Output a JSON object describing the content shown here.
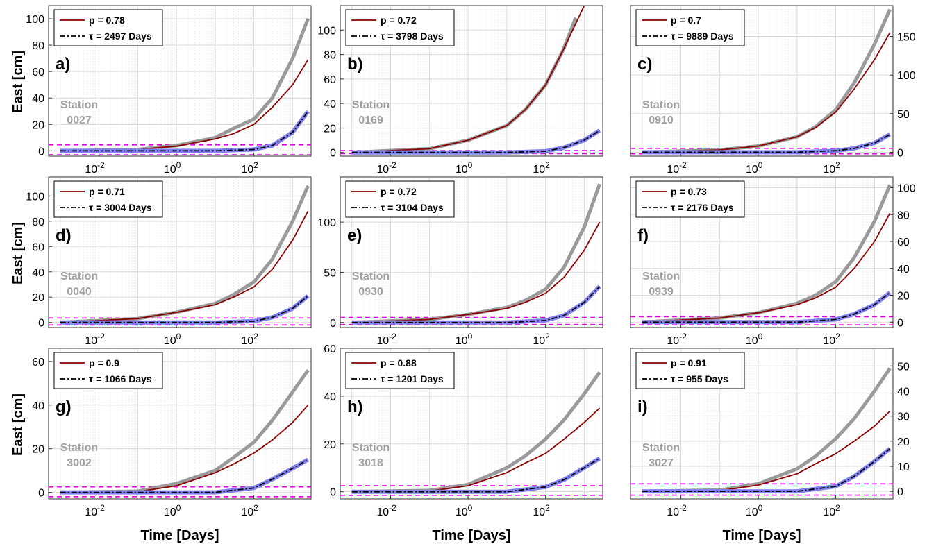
{
  "figure": {
    "ylabel": "East [cm]",
    "xlabel": "Time [Days]",
    "legend_p_prefix": "p = ",
    "legend_tau_prefix": "τ = ",
    "legend_tau_suffix": " Days",
    "station_word": "Station",
    "x_tick_labels": [
      "10^-2",
      "10^0",
      "10^2"
    ],
    "x_scale": "log",
    "x_range": [
      0.0005,
      3000
    ],
    "grid": true,
    "legend_position": "top-left",
    "colors": {
      "data": "#9a9a9a",
      "residual": "#8080ee",
      "model": "#8b0000",
      "postseismic_fit": "#000000",
      "threshold": "#e000e0",
      "station_label": "#a0a0a0"
    }
  },
  "chart_data": [
    {
      "type": "line",
      "panel": "a)",
      "station": "0027",
      "p": "0.78",
      "tau": "2497",
      "y_ticks": [
        0,
        20,
        40,
        60,
        80,
        100
      ],
      "ylim": [
        -4,
        110
      ],
      "y_axis": "left",
      "thresholds": [
        4.5,
        -3
      ],
      "series": [
        {
          "x": [
            0.001,
            0.1,
            1,
            10,
            30,
            100,
            300,
            1000,
            2500
          ],
          "values": [
            0,
            1,
            4,
            10,
            17,
            24,
            40,
            70,
            100
          ]
        },
        {
          "x": [
            0.001,
            0.1,
            1,
            10,
            30,
            100,
            300,
            1000,
            2500
          ],
          "values": [
            0,
            1,
            3.5,
            9,
            13,
            20,
            33,
            50,
            69
          ]
        },
        {
          "x": [
            0.001,
            1,
            10,
            100,
            300,
            1000,
            2500
          ],
          "values": [
            0,
            0,
            0,
            1,
            4,
            14,
            30
          ]
        }
      ]
    },
    {
      "type": "line",
      "panel": "b)",
      "station": "0169",
      "p": "0.72",
      "tau": "3798",
      "y_ticks": [
        0,
        20,
        40,
        60,
        80,
        100
      ],
      "ylim": [
        -3,
        120
      ],
      "y_axis": "left",
      "thresholds": [
        1.5,
        -1
      ],
      "series": [
        {
          "x": [
            0.001,
            0.1,
            1,
            10,
            30,
            100,
            300,
            600
          ],
          "values": [
            0,
            3,
            10,
            22,
            35,
            55,
            85,
            110
          ]
        },
        {
          "x": [
            0.001,
            0.1,
            1,
            10,
            30,
            100,
            300,
            1000
          ],
          "values": [
            0,
            3,
            10,
            22,
            35,
            55,
            85,
            120
          ]
        },
        {
          "x": [
            0.001,
            10,
            100,
            300,
            1000,
            2500
          ],
          "values": [
            0,
            0,
            1,
            4,
            10,
            18
          ]
        }
      ]
    },
    {
      "type": "line",
      "panel": "c)",
      "station": "0910",
      "p": "0.7",
      "tau": "9889",
      "y_ticks": [
        0,
        50,
        100,
        150
      ],
      "ylim": [
        -5,
        190
      ],
      "y_axis": "right",
      "thresholds": [
        5,
        -2
      ],
      "series": [
        {
          "x": [
            0.001,
            0.1,
            1,
            10,
            30,
            100,
            300,
            1000,
            2500
          ],
          "values": [
            0,
            3,
            8,
            20,
            33,
            55,
            90,
            140,
            185
          ]
        },
        {
          "x": [
            0.001,
            0.1,
            1,
            10,
            30,
            100,
            300,
            1000,
            2500
          ],
          "values": [
            0,
            3,
            8,
            20,
            32,
            52,
            82,
            120,
            155
          ]
        },
        {
          "x": [
            0.001,
            10,
            100,
            300,
            1000,
            2500
          ],
          "values": [
            0,
            0,
            2,
            5,
            12,
            23
          ]
        }
      ]
    },
    {
      "type": "line",
      "panel": "d)",
      "station": "0040",
      "p": "0.71",
      "tau": "3004",
      "y_ticks": [
        0,
        20,
        40,
        60,
        80,
        100
      ],
      "ylim": [
        -4,
        115
      ],
      "y_axis": "left",
      "thresholds": [
        3.5,
        -2
      ],
      "series": [
        {
          "x": [
            0.001,
            0.1,
            1,
            10,
            30,
            100,
            300,
            1000,
            2500
          ],
          "values": [
            0,
            3,
            8,
            15,
            22,
            32,
            50,
            80,
            108
          ]
        },
        {
          "x": [
            0.001,
            0.1,
            1,
            10,
            30,
            100,
            300,
            1000,
            2500
          ],
          "values": [
            0,
            3,
            8,
            14,
            20,
            28,
            42,
            65,
            88
          ]
        },
        {
          "x": [
            0.001,
            10,
            100,
            300,
            1000,
            2500
          ],
          "values": [
            0,
            0,
            1,
            4,
            11,
            21
          ]
        }
      ]
    },
    {
      "type": "line",
      "panel": "e)",
      "station": "0930",
      "p": "0.72",
      "tau": "3104",
      "y_ticks": [
        0,
        50,
        100
      ],
      "ylim": [
        -5,
        145
      ],
      "y_axis": "left",
      "thresholds": [
        5,
        -2
      ],
      "series": [
        {
          "x": [
            0.001,
            0.1,
            1,
            10,
            30,
            100,
            300,
            1000,
            2500
          ],
          "values": [
            0,
            3,
            8,
            15,
            22,
            33,
            55,
            95,
            138
          ]
        },
        {
          "x": [
            0.001,
            0.1,
            1,
            10,
            30,
            100,
            300,
            1000,
            2500
          ],
          "values": [
            0,
            3,
            8,
            14,
            20,
            29,
            45,
            72,
            100
          ]
        },
        {
          "x": [
            0.001,
            10,
            100,
            300,
            1000,
            2500
          ],
          "values": [
            0,
            0,
            2,
            7,
            20,
            36
          ]
        }
      ]
    },
    {
      "type": "line",
      "panel": "f)",
      "station": "0939",
      "p": "0.73",
      "tau": "2176",
      "y_ticks": [
        0,
        20,
        40,
        60,
        80,
        100
      ],
      "ylim": [
        -4,
        108
      ],
      "y_axis": "right",
      "thresholds": [
        4,
        -2
      ],
      "series": [
        {
          "x": [
            0.001,
            0.1,
            1,
            10,
            30,
            100,
            300,
            1000,
            2500
          ],
          "values": [
            0,
            3,
            7,
            14,
            20,
            30,
            48,
            75,
            102
          ]
        },
        {
          "x": [
            0.001,
            0.1,
            1,
            10,
            30,
            100,
            300,
            1000,
            2500
          ],
          "values": [
            0,
            3,
            7,
            13,
            18,
            26,
            40,
            60,
            81
          ]
        },
        {
          "x": [
            0.001,
            10,
            100,
            300,
            1000,
            2500
          ],
          "values": [
            0,
            0,
            2,
            6,
            13,
            22
          ]
        }
      ]
    },
    {
      "type": "line",
      "panel": "g)",
      "station": "3002",
      "p": "0.9",
      "tau": "1066",
      "y_ticks": [
        0,
        20,
        40,
        60
      ],
      "ylim": [
        -3,
        66
      ],
      "y_axis": "left",
      "thresholds": [
        2.5,
        -2
      ],
      "series": [
        {
          "x": [
            0.001,
            0.1,
            1,
            10,
            30,
            100,
            300,
            1000,
            2500
          ],
          "values": [
            0,
            0.5,
            4,
            10,
            16,
            23,
            33,
            46,
            56
          ]
        },
        {
          "x": [
            0.001,
            0.1,
            1,
            10,
            30,
            100,
            300,
            1000,
            2500
          ],
          "values": [
            0,
            0.3,
            3,
            9,
            13,
            18,
            24,
            32,
            40
          ]
        },
        {
          "x": [
            0.001,
            10,
            100,
            300,
            1000,
            2500
          ],
          "values": [
            0,
            0,
            2,
            6,
            11,
            15
          ]
        }
      ]
    },
    {
      "type": "line",
      "panel": "h)",
      "station": "3018",
      "p": "0.88",
      "tau": "1201",
      "y_ticks": [
        0,
        20,
        40,
        60
      ],
      "ylim": [
        -3,
        60
      ],
      "y_axis": "left",
      "thresholds": [
        2.5,
        -1.5
      ],
      "series": [
        {
          "x": [
            0.001,
            0.1,
            1,
            10,
            30,
            100,
            300,
            1000,
            2500
          ],
          "values": [
            0,
            0.5,
            3,
            10,
            15,
            22,
            30,
            41,
            50
          ]
        },
        {
          "x": [
            0.001,
            0.1,
            1,
            10,
            30,
            100,
            300,
            1000,
            2500
          ],
          "values": [
            0,
            0.3,
            2.5,
            8,
            12,
            16,
            22,
            29,
            35
          ]
        },
        {
          "x": [
            0.001,
            10,
            100,
            300,
            1000,
            2500
          ],
          "values": [
            0,
            0,
            2,
            5,
            10,
            14
          ]
        }
      ]
    },
    {
      "type": "line",
      "panel": "i)",
      "station": "3027",
      "p": "0.91",
      "tau": "955",
      "y_ticks": [
        0,
        10,
        20,
        30,
        40,
        50
      ],
      "ylim": [
        -3,
        57
      ],
      "y_axis": "right",
      "thresholds": [
        3,
        -1.5
      ],
      "series": [
        {
          "x": [
            0.001,
            0.1,
            1,
            10,
            30,
            100,
            300,
            1000,
            2500
          ],
          "values": [
            0,
            0.5,
            3,
            9,
            14,
            21,
            29,
            40,
            49
          ]
        },
        {
          "x": [
            0.001,
            0.1,
            1,
            10,
            30,
            100,
            300,
            1000,
            2500
          ],
          "values": [
            0,
            0.3,
            2.5,
            7,
            11,
            15,
            20,
            26,
            32
          ]
        },
        {
          "x": [
            0.001,
            10,
            100,
            300,
            1000,
            2500
          ],
          "values": [
            0,
            0,
            2,
            6,
            12,
            17
          ]
        }
      ]
    }
  ]
}
